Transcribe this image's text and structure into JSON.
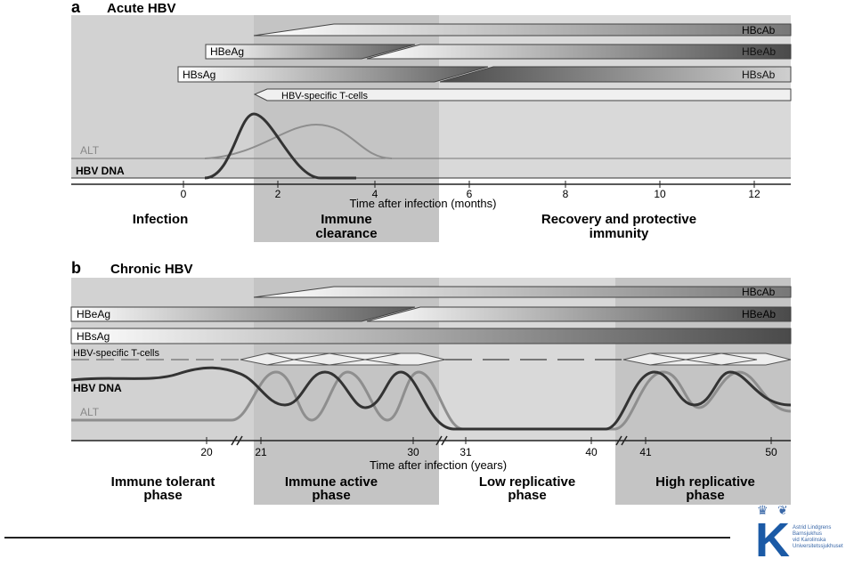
{
  "panel_a": {
    "letter": "a",
    "title": "Acute HBV",
    "bars": {
      "hbcab": "HBcAb",
      "hbeag": "HBeAg",
      "hbeab": "HBeAb",
      "hbsag": "HBsAg",
      "hbsab": "HBsAb",
      "tcells": "HBV-specific T-cells"
    },
    "curve_labels": {
      "alt": "ALT",
      "dna": "HBV DNA"
    },
    "ticks": [
      "0",
      "2",
      "4",
      "6",
      "8",
      "10",
      "12"
    ],
    "axis_label": "Time after infection (months)",
    "phases": {
      "infection": "Infection",
      "clearance_1": "Immune",
      "clearance_2": "clearance",
      "recovery_1": "Recovery and protective",
      "recovery_2": "immunity"
    }
  },
  "panel_b": {
    "letter": "b",
    "title": "Chronic HBV",
    "bars": {
      "hbcab": "HBcAb",
      "hbeag": "HBeAg",
      "hbeab": "HBeAb",
      "hbsag": "HBsAg",
      "tcells": "HBV-specific T-cells"
    },
    "curve_labels": {
      "dna": "HBV DNA",
      "alt": "ALT"
    },
    "ticks": [
      "20",
      "21",
      "30",
      "31",
      "40",
      "41",
      "50"
    ],
    "axis_label": "Time after infection (years)",
    "phases": {
      "tolerant_1": "Immune tolerant",
      "tolerant_2": "phase",
      "active_1": "Immune active",
      "active_2": "phase",
      "low_1": "Low replicative",
      "low_2": "phase",
      "high_1": "High replicative",
      "high_2": "phase"
    }
  },
  "logo": {
    "letter": "K",
    "lines": [
      "Astrid Lindgrens",
      "Barnsjukhus",
      "vid Karolinska",
      "Universitetssjukhuset"
    ]
  },
  "colors": {
    "shade": "#d2d2d2",
    "shade_dark": "#bdbdbd",
    "bar_dark": "#5a5a5a",
    "line": "#333333",
    "alt_line": "#8e8e8e",
    "logo_blue": "#1b5aa6"
  }
}
